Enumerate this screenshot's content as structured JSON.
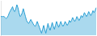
{
  "chart_data": {
    "type": "area",
    "categories": [
      null,
      null,
      null,
      null,
      null,
      null,
      null,
      null,
      null,
      null,
      null,
      null,
      null,
      null,
      null,
      null,
      null,
      null,
      null,
      null,
      null,
      null,
      null,
      null,
      null,
      null,
      null,
      null,
      null,
      null,
      null,
      null,
      null,
      null,
      null,
      null,
      null,
      null,
      null,
      null,
      null,
      null,
      null,
      null,
      null,
      null,
      null,
      null,
      null,
      null,
      null,
      null,
      null,
      null,
      null,
      null,
      null,
      null,
      null,
      null,
      null,
      null,
      null,
      null,
      null,
      null,
      null,
      null,
      null,
      null,
      null,
      null,
      null,
      null,
      null,
      null,
      null,
      null,
      null,
      null,
      null,
      null,
      null,
      null,
      null,
      null,
      null,
      null,
      null,
      null
    ],
    "values": [
      32,
      32,
      32,
      32,
      31,
      30,
      31,
      33,
      36,
      38,
      40,
      42,
      38,
      37,
      40,
      44,
      41,
      36,
      32,
      33,
      36,
      40,
      36,
      32,
      28,
      26,
      25,
      27,
      29,
      27,
      25,
      23,
      22,
      24,
      27,
      24,
      21,
      18,
      15,
      19,
      23,
      19,
      15,
      20,
      25,
      21,
      18,
      22,
      26,
      22,
      19,
      23,
      27,
      24,
      21,
      24,
      27,
      24,
      22,
      24,
      27,
      25,
      23,
      25,
      28,
      26,
      28,
      31,
      29,
      27,
      29,
      32,
      30,
      28,
      30,
      33,
      31,
      33,
      36,
      34,
      32,
      34,
      37,
      35,
      33,
      35,
      38,
      36,
      38,
      41
    ],
    "color": "#2b9fd4",
    "ylim": [
      13,
      48
    ],
    "grid": false,
    "tick_labels": false
  }
}
